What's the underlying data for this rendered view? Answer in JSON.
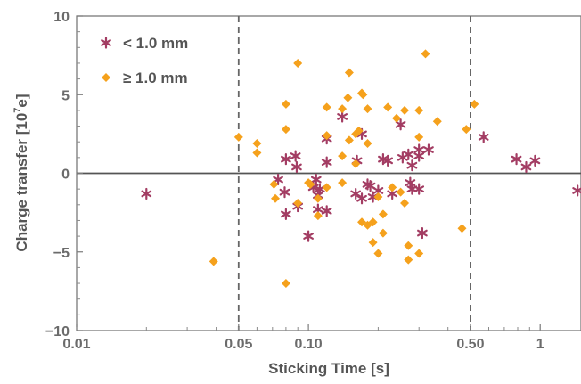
{
  "chart_data": {
    "type": "scatter",
    "x_scale": "log",
    "xlabel": "Sticking Time [s]",
    "ylabel": "Charge transfer [10^7e]",
    "ylabel_parts": {
      "base": "Charge transfer [10",
      "exp": "7",
      "tail": "e]"
    },
    "xlim": [
      0.01,
      1.5
    ],
    "ylim": [
      -10,
      10
    ],
    "x_ticks": [
      {
        "value": 0.01,
        "label": "0.01"
      },
      {
        "value": 0.05,
        "label": "0.05"
      },
      {
        "value": 0.1,
        "label": "0.10"
      },
      {
        "value": 0.5,
        "label": "0.50"
      },
      {
        "value": 1,
        "label": "1"
      }
    ],
    "y_ticks": [
      {
        "value": -10,
        "label": "−10"
      },
      {
        "value": -5,
        "label": "−5"
      },
      {
        "value": 0,
        "label": "0"
      },
      {
        "value": 5,
        "label": "5"
      },
      {
        "value": 10,
        "label": "10"
      }
    ],
    "reference_lines": {
      "vertical_dashed": [
        0.05,
        0.5
      ],
      "horizontal_solid": [
        0
      ]
    },
    "grid": false,
    "legend_position": "top-left",
    "series": [
      {
        "name": "< 1.0 mm",
        "marker": "asterisk",
        "color": "#a33d63",
        "points": [
          [
            0.02,
            -1.3
          ],
          [
            0.074,
            -0.4
          ],
          [
            0.079,
            -1.2
          ],
          [
            0.08,
            -2.6
          ],
          [
            0.08,
            0.9
          ],
          [
            0.088,
            1.1
          ],
          [
            0.089,
            0.4
          ],
          [
            0.09,
            -2.1
          ],
          [
            0.1,
            -4.0
          ],
          [
            0.105,
            -0.9
          ],
          [
            0.108,
            -0.4
          ],
          [
            0.11,
            -1.4
          ],
          [
            0.11,
            -2.3
          ],
          [
            0.112,
            -1.0
          ],
          [
            0.12,
            -2.4
          ],
          [
            0.12,
            0.7
          ],
          [
            0.12,
            2.2
          ],
          [
            0.14,
            3.6
          ],
          [
            0.16,
            -1.3
          ],
          [
            0.162,
            0.8
          ],
          [
            0.17,
            2.5
          ],
          [
            0.17,
            -1.6
          ],
          [
            0.18,
            -0.7
          ],
          [
            0.185,
            -0.8
          ],
          [
            0.19,
            -1.5
          ],
          [
            0.2,
            -1.1
          ],
          [
            0.21,
            0.9
          ],
          [
            0.22,
            0.8
          ],
          [
            0.23,
            -1.3
          ],
          [
            0.25,
            3.1
          ],
          [
            0.255,
            1.0
          ],
          [
            0.27,
            1.2
          ],
          [
            0.275,
            -0.6
          ],
          [
            0.28,
            0.5
          ],
          [
            0.28,
            -1.0
          ],
          [
            0.3,
            -1.0
          ],
          [
            0.3,
            1.1
          ],
          [
            0.3,
            1.5
          ],
          [
            0.31,
            -3.8
          ],
          [
            0.33,
            1.5
          ],
          [
            0.57,
            2.3
          ],
          [
            0.79,
            0.9
          ],
          [
            0.87,
            0.4
          ],
          [
            0.95,
            0.8
          ],
          [
            1.45,
            -1.1
          ]
        ]
      },
      {
        "name": "≥ 1.0 mm",
        "marker": "diamond",
        "color": "#f5a11c",
        "points": [
          [
            0.039,
            -5.6
          ],
          [
            0.05,
            2.3
          ],
          [
            0.06,
            1.9
          ],
          [
            0.06,
            1.3
          ],
          [
            0.071,
            -0.7
          ],
          [
            0.072,
            -1.6
          ],
          [
            0.08,
            -7.0
          ],
          [
            0.08,
            2.8
          ],
          [
            0.08,
            4.4
          ],
          [
            0.09,
            7.0
          ],
          [
            0.09,
            -1.9
          ],
          [
            0.1,
            -0.6
          ],
          [
            0.102,
            -0.7
          ],
          [
            0.11,
            -1.6
          ],
          [
            0.11,
            -2.7
          ],
          [
            0.12,
            -0.9
          ],
          [
            0.12,
            2.4
          ],
          [
            0.12,
            4.2
          ],
          [
            0.14,
            4.1
          ],
          [
            0.14,
            1.1
          ],
          [
            0.14,
            -0.6
          ],
          [
            0.148,
            4.8
          ],
          [
            0.15,
            6.4
          ],
          [
            0.15,
            2.1
          ],
          [
            0.16,
            0.6
          ],
          [
            0.16,
            2.5
          ],
          [
            0.165,
            2.7
          ],
          [
            0.17,
            5.1
          ],
          [
            0.172,
            5.0
          ],
          [
            0.18,
            4.1
          ],
          [
            0.18,
            1.9
          ],
          [
            0.17,
            -3.1
          ],
          [
            0.18,
            -3.3
          ],
          [
            0.19,
            -4.4
          ],
          [
            0.19,
            -3.1
          ],
          [
            0.2,
            -5.1
          ],
          [
            0.2,
            -1.5
          ],
          [
            0.21,
            -3.8
          ],
          [
            0.21,
            -2.6
          ],
          [
            0.22,
            4.2
          ],
          [
            0.23,
            -0.9
          ],
          [
            0.24,
            3.5
          ],
          [
            0.25,
            -1.2
          ],
          [
            0.26,
            4.0
          ],
          [
            0.26,
            -1.9
          ],
          [
            0.27,
            -4.6
          ],
          [
            0.27,
            -5.5
          ],
          [
            0.3,
            2.3
          ],
          [
            0.3,
            4.0
          ],
          [
            0.3,
            -5.1
          ],
          [
            0.32,
            7.6
          ],
          [
            0.36,
            3.3
          ],
          [
            0.46,
            -3.5
          ],
          [
            0.48,
            2.8
          ],
          [
            0.52,
            4.4
          ]
        ]
      }
    ]
  }
}
